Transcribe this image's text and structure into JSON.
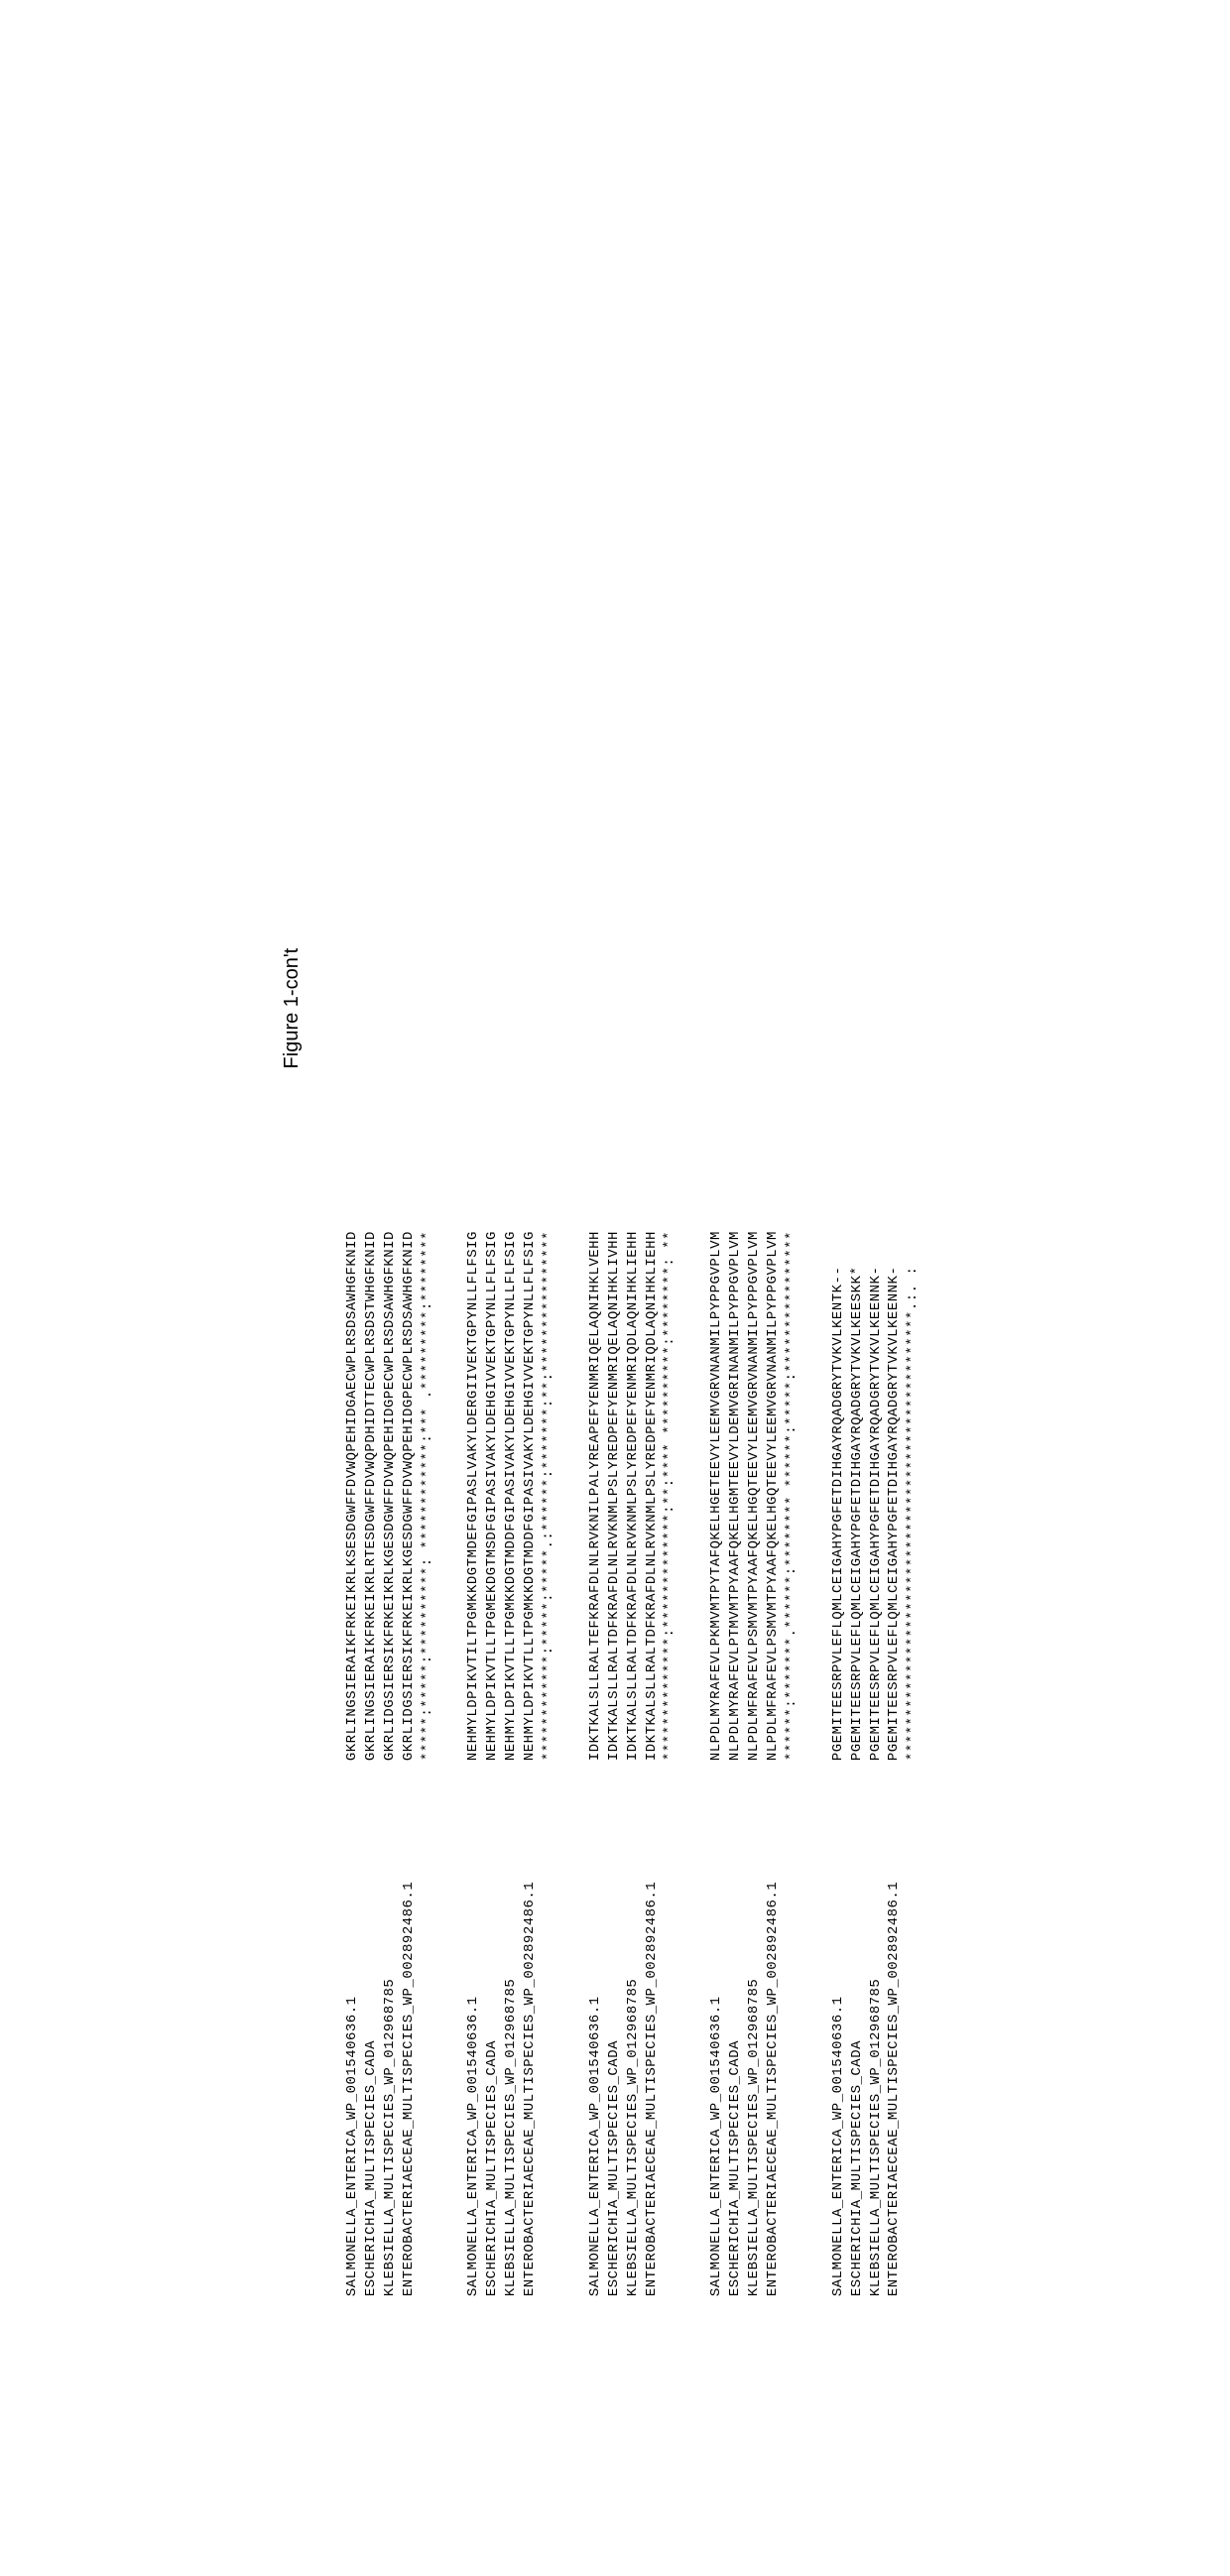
{
  "figure_title": "Figure 1-con't",
  "font": {
    "mono_family": "Courier New",
    "label_fontsize": 14,
    "seq_fontsize": 14,
    "title_fontsize": 20,
    "title_family": "Arial"
  },
  "colors": {
    "background": "#ffffff",
    "text": "#000000"
  },
  "alignment": {
    "labels": [
      "SALMONELLA_ENTERICA_WP_001540636.1",
      "ESCHERICHIA_MULTISPECIES_CADA",
      "KLEBSIELLA_MULTISPECIES_WP_012968785",
      "ENTEROBACTERIAECEAE_MULTISPECIES_WP_002892486.1"
    ],
    "blocks": [
      {
        "rows": [
          "GKRLINGSIERAIKFRKEIKRLKSESDGWFFDVWQPEHIDGAECWPLRSDSAWHGFKNID",
          "GKRLINGSIERAIKFRKEIKRLRTESDGWFFDVWQPDHIDTTECWPLRSDSTWHGFKNID",
          "GKRLIDGSIERSIKFRKEIKRLKGESDGWFFDVWQPEHIDGPECWPLRSDSAWHGFKNID",
          "GKRLIDGSIERSIKFRKEIKRLKGESDGWFFDVWQPEHIDGPECWPLRSDSAWHGFKNID"
        ],
        "consensus": "*****:*****:**********: ************:*** .*********:********"
      },
      {
        "rows": [
          "NEHMYLDPIKVTILTPGMKKDGTMDEFGIPASLVAKYLDERGIIVEKTGPYNLLFLFSIG",
          "NEHMYLDPIKVTLLTPGMEKDGTMSDFGIPASIVAKYLDEHGIVVEKTGPYNLLFLFSIG",
          "NEHMYLDPIKVTLLTPGMKKDGTMDDFGIPASIVAKYLDEHGIVVEKTGPYNLLFLFSIG",
          "NEHMYLDPIKVTLLTPGMKKDGTMDDFGIPASIVAKYLDEHGIVVEKTGPYNLLFLFSIG"
        ],
        "consensus": "************:*****:*****.:******:*******:**:****************"
      },
      {
        "rows": [
          "IDKTKALSLLRALTEFKRAFDLNLRVKNILPALYREAPEFYENMRIQELAQNIHKLVEHH",
          "IDKTKALSLLRALTDFKRAFDLNLRVKNMLPSLYREDPEFYENMRIQELAQNIHKLIVHH",
          "IDKTKALSLLRALTDFKRAFDLNLRVKNMLPSLYREDPEFYENMRIQDLAQNIHKLIEHH",
          "IDKTKALSLLRALTDFKRAFDLNLRVKNMLPSLYREDPEFYENMRIQDLAQNIHKLIEHH"
        ],
        "consensus": "**************:*************:**:**** **********:********: **"
      },
      {
        "rows": [
          "NLPDLMYRAFEVLPKMVMTPYTAFQKELHGETEEVYLEEMVGRVNANMILPYPPGVPLVM",
          "NLPDLMYRAFEVLPTMVMTPYAAFQKELHGMTEEVYLDEMVGRINANMILPYPPGVPLVM",
          "NLPDLMFRAFEVLPSMVMTPYAAFQKELHGQTEEVYLEEMVGRVNANMILPYPPGVPLVM",
          "NLPDLMFRAFEVLPSMVMTPYAAFQKELHGQTEEVYLEEMVGRVNANMILPYPPGVPLVM"
        ],
        "consensus": "******:*******.******:******** ******:*****:****************"
      },
      {
        "rows": [
          "PGEMITEESRPVLEFLQMLCEIGAHYPGFETDIHGAYRQADGRYTVKVLKENTK--",
          "PGEMITEESRPVLEFLQMLCEIGAHYPGFETDIHGAYRQADGRYTVKVLKEESKK*",
          "PGEMITEESRPVLEFLQMLCEIGAHYPGFETDIHGAYRQADGRYTVKVLKEENNK-",
          "PGEMITEESRPVLEFLQMLCEIGAHYPGFETDIHGAYRQADGRYTVKVLKEENNK-"
        ],
        "consensus": "***************************************************.:. :"
      }
    ]
  }
}
